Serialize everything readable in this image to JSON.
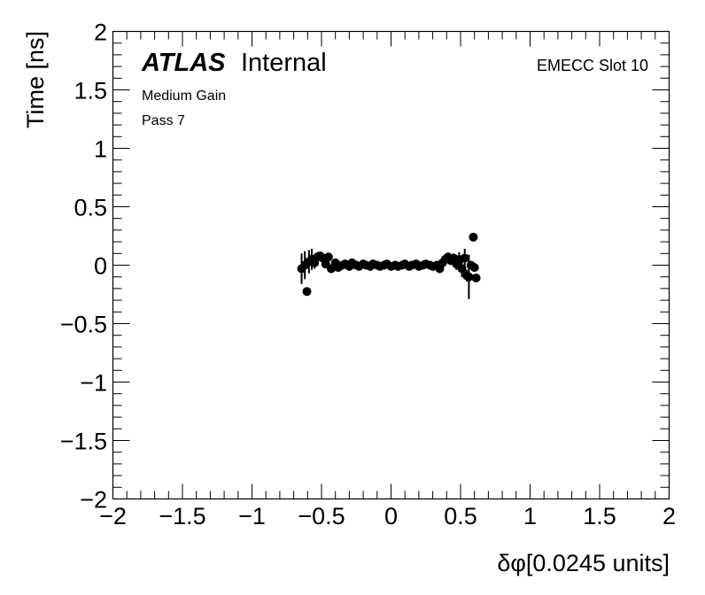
{
  "chart_data": {
    "type": "scatter",
    "title": "",
    "xlabel": "δφ[0.0245 units]",
    "ylabel": "Time [ns]",
    "xlim": [
      -2,
      2
    ],
    "ylim": [
      -2,
      2
    ],
    "x_major_step": 0.5,
    "x_minor_step": 0.1,
    "y_major_step": 0.5,
    "y_minor_step": 0.1,
    "x_tick_labels": [
      "−2",
      "−1.5",
      "−1",
      "−0.5",
      "0",
      "0.5",
      "1",
      "1.5",
      "2"
    ],
    "y_tick_labels": [
      "−2",
      "−1.5",
      "−1",
      "−0.5",
      "0",
      "0.5",
      "1",
      "1.5",
      "2"
    ],
    "grid": false,
    "marker_color": "#000000",
    "annotations": {
      "atlas": "ATLAS",
      "internal": "Internal",
      "line1": "Medium Gain",
      "line2": "Pass 7",
      "slot": "EMECC Slot 10"
    },
    "points": [
      {
        "x": -0.643,
        "y": -0.03,
        "err": 0.13
      },
      {
        "x": -0.62,
        "y": 0.0,
        "err": 0.12
      },
      {
        "x": -0.605,
        "y": -0.225,
        "err": 0.02
      },
      {
        "x": -0.59,
        "y": 0.03,
        "err": 0.1
      },
      {
        "x": -0.57,
        "y": 0.05,
        "err": 0.09
      },
      {
        "x": -0.55,
        "y": 0.02,
        "err": 0.05
      },
      {
        "x": -0.53,
        "y": 0.07,
        "err": 0.04
      },
      {
        "x": -0.51,
        "y": 0.08,
        "err": 0.03
      },
      {
        "x": -0.49,
        "y": 0.06,
        "err": 0.02
      },
      {
        "x": -0.47,
        "y": 0.01,
        "err": 0.02
      },
      {
        "x": -0.45,
        "y": 0.07,
        "err": 0.02
      },
      {
        "x": -0.43,
        "y": -0.03,
        "err": 0.02
      },
      {
        "x": -0.4,
        "y": 0.02,
        "err": 0.02
      },
      {
        "x": -0.38,
        "y": -0.02,
        "err": 0.01
      },
      {
        "x": -0.35,
        "y": 0.0,
        "err": 0.01
      },
      {
        "x": -0.33,
        "y": 0.01,
        "err": 0.01
      },
      {
        "x": -0.3,
        "y": -0.01,
        "err": 0.01
      },
      {
        "x": -0.28,
        "y": 0.02,
        "err": 0.01
      },
      {
        "x": -0.25,
        "y": 0.0,
        "err": 0.01
      },
      {
        "x": -0.23,
        "y": -0.01,
        "err": 0.01
      },
      {
        "x": -0.2,
        "y": 0.01,
        "err": 0.01
      },
      {
        "x": -0.18,
        "y": 0.0,
        "err": 0.01
      },
      {
        "x": -0.15,
        "y": -0.01,
        "err": 0.01
      },
      {
        "x": -0.13,
        "y": 0.01,
        "err": 0.01
      },
      {
        "x": -0.1,
        "y": 0.0,
        "err": 0.01
      },
      {
        "x": -0.08,
        "y": -0.01,
        "err": 0.01
      },
      {
        "x": -0.05,
        "y": 0.0,
        "err": 0.01
      },
      {
        "x": -0.03,
        "y": 0.01,
        "err": 0.01
      },
      {
        "x": 0.0,
        "y": -0.01,
        "err": 0.01
      },
      {
        "x": 0.03,
        "y": 0.0,
        "err": 0.01
      },
      {
        "x": 0.05,
        "y": -0.01,
        "err": 0.01
      },
      {
        "x": 0.08,
        "y": 0.0,
        "err": 0.01
      },
      {
        "x": 0.1,
        "y": 0.01,
        "err": 0.01
      },
      {
        "x": 0.13,
        "y": -0.01,
        "err": 0.01
      },
      {
        "x": 0.15,
        "y": 0.0,
        "err": 0.01
      },
      {
        "x": 0.18,
        "y": 0.01,
        "err": 0.01
      },
      {
        "x": 0.2,
        "y": -0.01,
        "err": 0.01
      },
      {
        "x": 0.23,
        "y": 0.0,
        "err": 0.01
      },
      {
        "x": 0.25,
        "y": 0.01,
        "err": 0.01
      },
      {
        "x": 0.28,
        "y": 0.0,
        "err": 0.01
      },
      {
        "x": 0.3,
        "y": -0.01,
        "err": 0.01
      },
      {
        "x": 0.33,
        "y": 0.0,
        "err": 0.01
      },
      {
        "x": 0.35,
        "y": -0.03,
        "err": 0.02
      },
      {
        "x": 0.37,
        "y": 0.02,
        "err": 0.02
      },
      {
        "x": 0.39,
        "y": 0.05,
        "err": 0.02
      },
      {
        "x": 0.41,
        "y": 0.07,
        "err": 0.03
      },
      {
        "x": 0.43,
        "y": 0.04,
        "err": 0.03
      },
      {
        "x": 0.45,
        "y": 0.06,
        "err": 0.04
      },
      {
        "x": 0.47,
        "y": 0.01,
        "err": 0.05
      },
      {
        "x": 0.49,
        "y": 0.05,
        "err": 0.06
      },
      {
        "x": 0.51,
        "y": -0.03,
        "err": 0.07
      },
      {
        "x": 0.53,
        "y": 0.06,
        "err": 0.08
      },
      {
        "x": 0.545,
        "y": -0.09,
        "err": 0.05
      },
      {
        "x": 0.56,
        "y": -0.1,
        "err": 0.19
      },
      {
        "x": 0.575,
        "y": 0.0,
        "err": 0.03
      },
      {
        "x": 0.592,
        "y": 0.24,
        "err": 0.02
      },
      {
        "x": 0.6,
        "y": -0.02,
        "err": 0.02
      },
      {
        "x": 0.612,
        "y": -0.11,
        "err": 0.02
      }
    ]
  }
}
